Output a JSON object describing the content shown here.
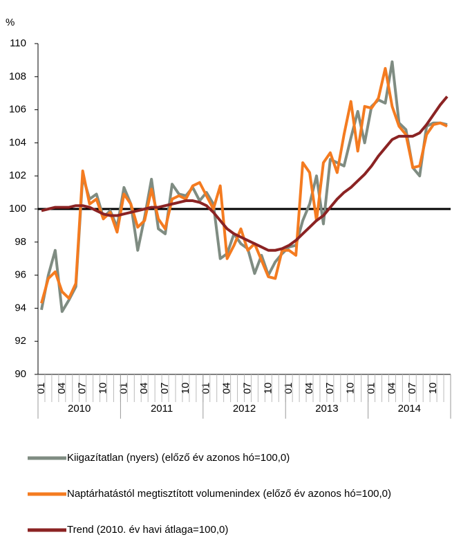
{
  "chart_data": {
    "type": "line",
    "y_unit_label": "%",
    "categories": [
      "01",
      null,
      null,
      "04",
      null,
      null,
      "07",
      null,
      null,
      "10",
      null,
      null,
      "01",
      null,
      null,
      "04",
      null,
      null,
      "07",
      null,
      null,
      "10",
      null,
      null,
      "01",
      null,
      null,
      "04",
      null,
      null,
      "07",
      null,
      null,
      "10",
      null,
      null,
      "01",
      null,
      null,
      "04",
      null,
      null,
      "07",
      null,
      null,
      "10",
      null,
      null,
      "01",
      null,
      null,
      "04",
      null,
      null,
      "07",
      null,
      null,
      "10",
      null,
      null
    ],
    "x_groups": [
      "2010",
      "2011",
      "2012",
      "2013",
      "2014"
    ],
    "ylim": [
      90,
      110
    ],
    "yticks": [
      90,
      92,
      94,
      96,
      98,
      100,
      102,
      104,
      106,
      108,
      110
    ],
    "reference_line": 100,
    "series": [
      {
        "name": "Kiigazítatlan (nyers) (előző év azonos hó=100,0)",
        "color": "#7f8c82",
        "values": [
          93.9,
          96.0,
          97.5,
          93.8,
          94.5,
          95.3,
          102.0,
          100.6,
          100.9,
          99.5,
          99.9,
          98.9,
          101.3,
          100.3,
          97.5,
          99.5,
          101.8,
          98.8,
          98.5,
          101.5,
          100.9,
          100.8,
          101.3,
          100.5,
          101.0,
          100.3,
          97.0,
          97.3,
          98.5,
          97.9,
          97.6,
          96.1,
          97.2,
          96.0,
          96.8,
          97.3,
          97.7,
          97.8,
          99.3,
          100.3,
          102.0,
          99.1,
          103.0,
          102.8,
          102.6,
          104.3,
          105.9,
          104.0,
          106.2,
          106.6,
          106.4,
          108.9,
          105.2,
          104.8,
          102.5,
          102.0,
          105.0,
          105.2,
          105.2,
          105.1
        ]
      },
      {
        "name": "Naptárhatástól megtisztított volumenindex (előző év azonos hó=100,0)",
        "color": "#f47b20",
        "values": [
          94.3,
          95.8,
          96.2,
          95.0,
          94.6,
          95.5,
          102.3,
          100.3,
          100.6,
          99.4,
          99.8,
          98.6,
          100.9,
          100.3,
          98.9,
          99.3,
          101.2,
          99.4,
          98.8,
          100.6,
          100.8,
          100.6,
          101.4,
          101.6,
          100.8,
          100.0,
          101.4,
          97.0,
          97.8,
          98.8,
          97.5,
          97.9,
          96.9,
          95.9,
          95.8,
          97.5,
          97.5,
          97.2,
          102.8,
          102.2,
          99.3,
          102.8,
          103.4,
          102.2,
          104.5,
          106.5,
          103.5,
          106.2,
          106.1,
          106.7,
          108.5,
          106.2,
          105.0,
          104.5,
          102.5,
          102.6,
          104.5,
          105.1,
          105.2,
          105.0
        ]
      },
      {
        "name": "Trend (2010. év havi átlaga=100,0)",
        "color": "#8b2323",
        "values": [
          99.9,
          100.0,
          100.1,
          100.1,
          100.1,
          100.2,
          100.2,
          100.1,
          99.9,
          99.7,
          99.6,
          99.6,
          99.7,
          99.8,
          99.9,
          100.0,
          100.1,
          100.1,
          100.2,
          100.3,
          100.4,
          100.5,
          100.5,
          100.4,
          100.2,
          99.8,
          99.3,
          98.8,
          98.5,
          98.3,
          98.1,
          97.9,
          97.7,
          97.5,
          97.5,
          97.6,
          97.8,
          98.1,
          98.5,
          98.9,
          99.3,
          99.6,
          100.1,
          100.6,
          101.0,
          101.3,
          101.7,
          102.1,
          102.6,
          103.2,
          103.7,
          104.2,
          104.4,
          104.4,
          104.4,
          104.6,
          105.1,
          105.7,
          106.3,
          106.8
        ]
      }
    ]
  }
}
